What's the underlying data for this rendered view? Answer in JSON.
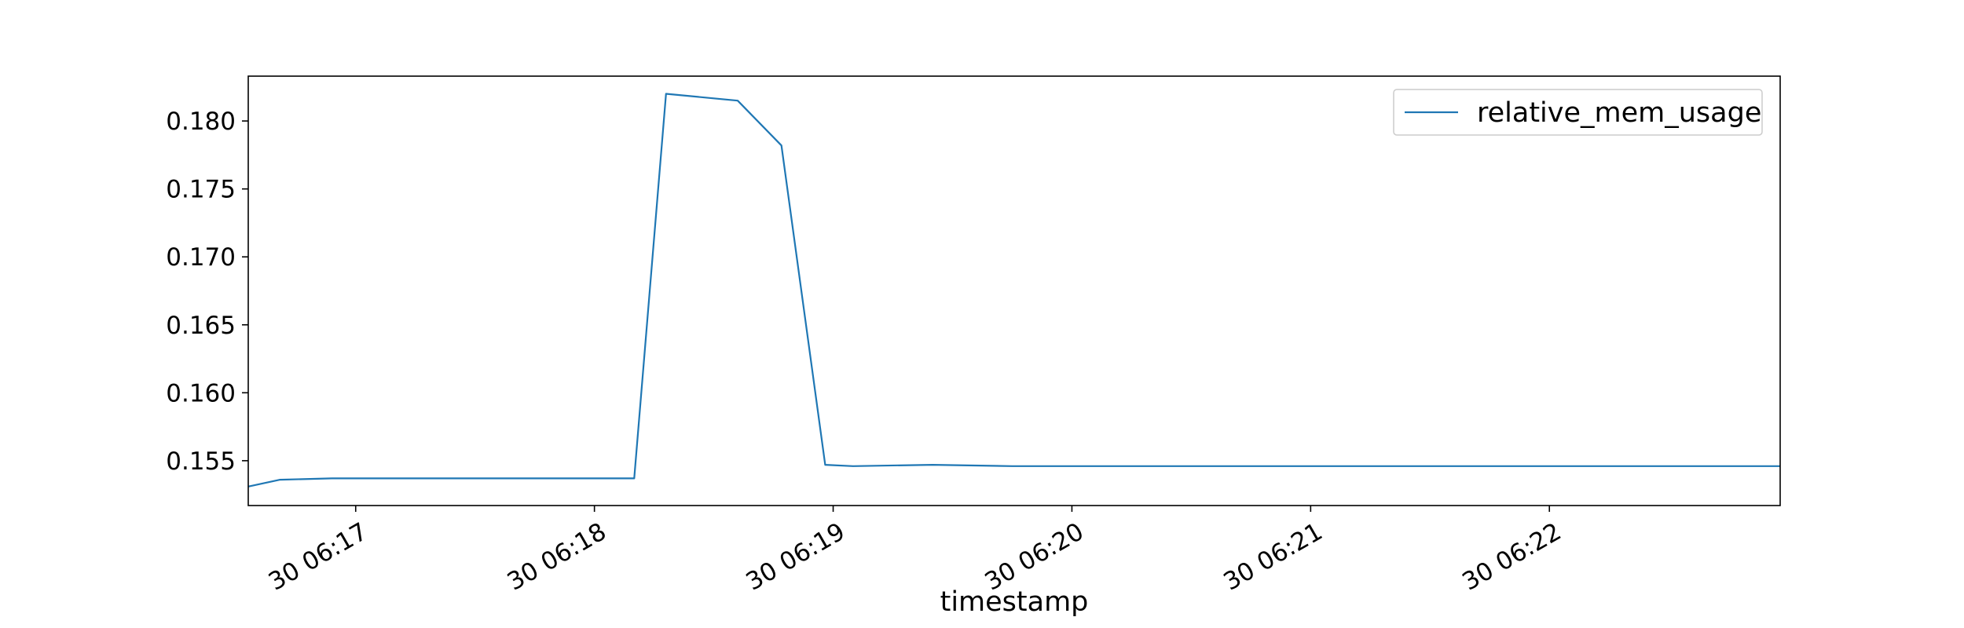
{
  "chart_data": {
    "type": "line",
    "title": "",
    "xlabel": "timestamp",
    "ylabel": "",
    "x_format": "datetime",
    "xlim": [
      "2020-01-30 06:16:33",
      "2020-01-30 06:22:58"
    ],
    "ylim": [
      0.1517,
      0.1833
    ],
    "grid": false,
    "legend_position": "top-right",
    "x_ticks": [
      "30 06:17",
      "30 06:18",
      "30 06:19",
      "30 06:20",
      "30 06:21",
      "30 06:22"
    ],
    "y_ticks": [
      "0.155",
      "0.160",
      "0.165",
      "0.170",
      "0.175",
      "0.180"
    ],
    "series": [
      {
        "name": "relative_mem_usage",
        "color": "#1f77b4",
        "points": [
          [
            "2020-01-30 06:16:33",
            0.1531
          ],
          [
            "2020-01-30 06:16:41",
            0.1536
          ],
          [
            "2020-01-30 06:16:54",
            0.1537
          ],
          [
            "2020-01-30 06:17:10",
            0.1537
          ],
          [
            "2020-01-30 06:17:30",
            0.1537
          ],
          [
            "2020-01-30 06:17:50",
            0.1537
          ],
          [
            "2020-01-30 06:18:05",
            0.1537
          ],
          [
            "2020-01-30 06:18:10",
            0.1537
          ],
          [
            "2020-01-30 06:18:18",
            0.182
          ],
          [
            "2020-01-30 06:18:36",
            0.1815
          ],
          [
            "2020-01-30 06:18:47",
            0.1782
          ],
          [
            "2020-01-30 06:18:58",
            0.1547
          ],
          [
            "2020-01-30 06:19:05",
            0.1546
          ],
          [
            "2020-01-30 06:19:25",
            0.1547
          ],
          [
            "2020-01-30 06:19:45",
            0.1546
          ],
          [
            "2020-01-30 06:20:05",
            0.1546
          ],
          [
            "2020-01-30 06:20:25",
            0.1546
          ],
          [
            "2020-01-30 06:20:45",
            0.1546
          ],
          [
            "2020-01-30 06:21:05",
            0.1546
          ],
          [
            "2020-01-30 06:21:25",
            0.1546
          ],
          [
            "2020-01-30 06:21:45",
            0.1546
          ],
          [
            "2020-01-30 06:22:05",
            0.1546
          ],
          [
            "2020-01-30 06:22:25",
            0.1546
          ],
          [
            "2020-01-30 06:22:45",
            0.1546
          ],
          [
            "2020-01-30 06:22:58",
            0.1546
          ]
        ]
      }
    ]
  }
}
